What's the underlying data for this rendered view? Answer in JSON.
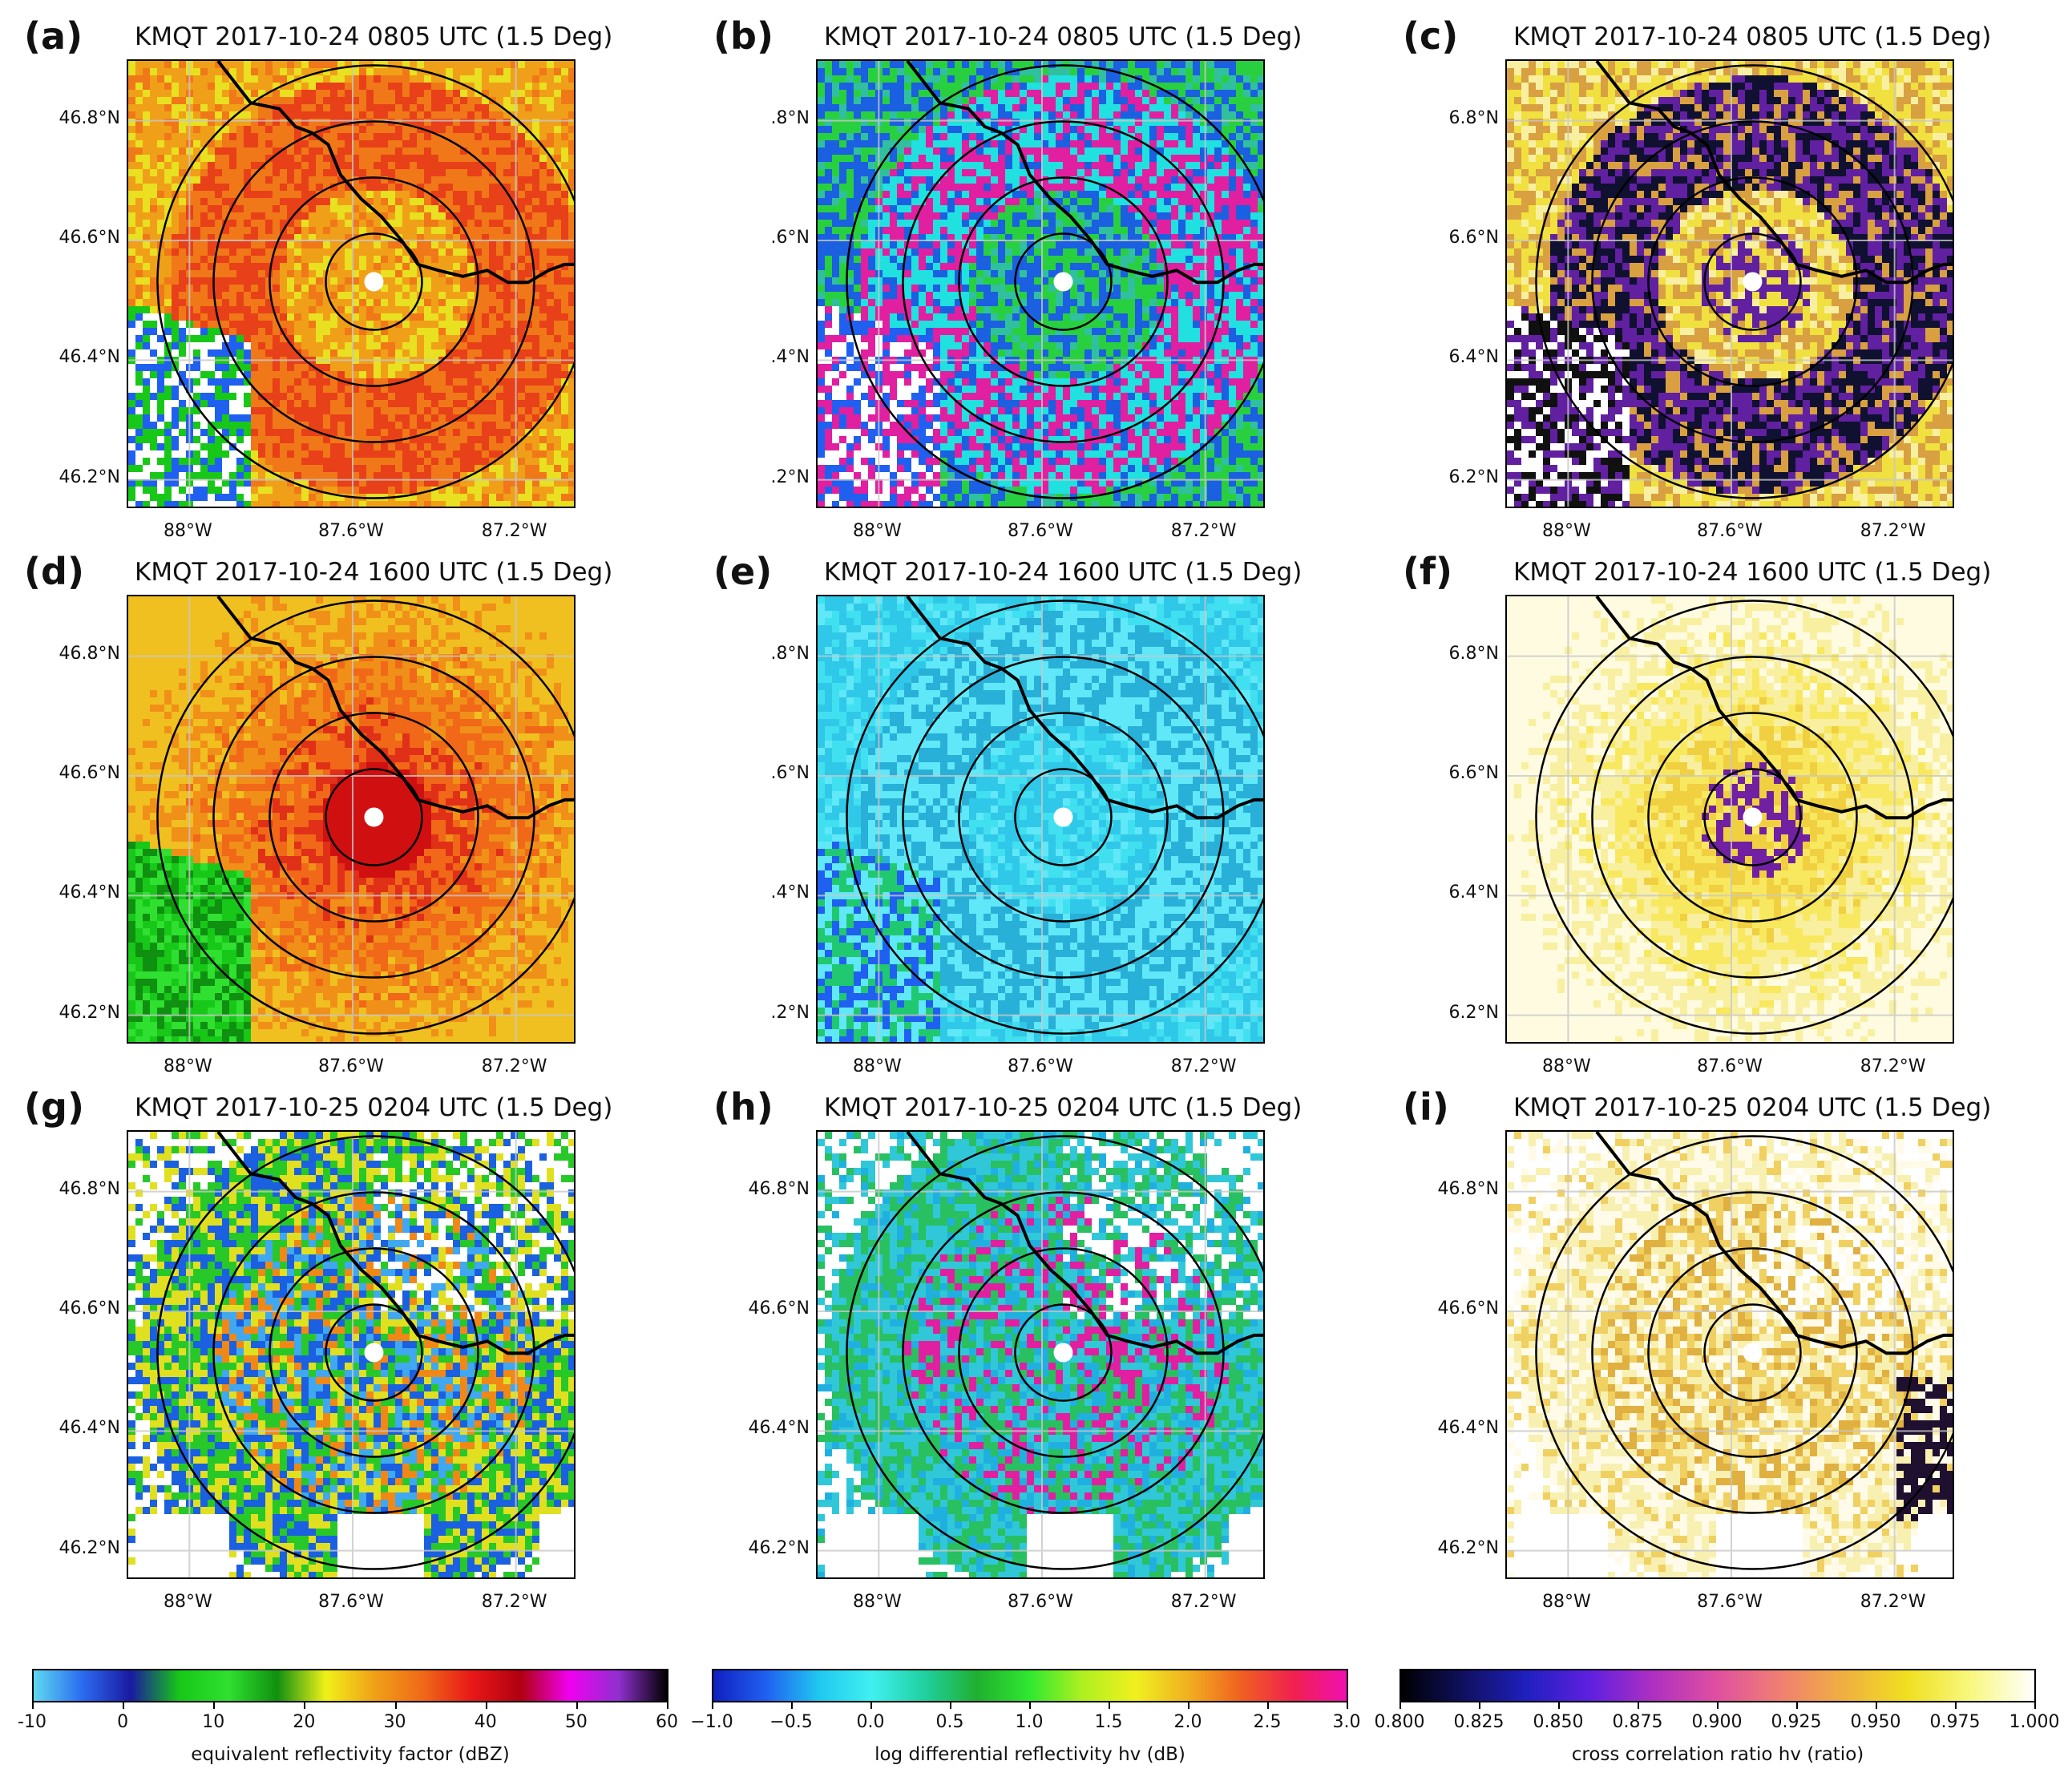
{
  "chart_data": {
    "type": "heatmap",
    "description_grid": "3x3 radar PPI panels, KMQT 1.5 deg elevation",
    "panels": [
      {
        "label": "(a)",
        "title": "KMQT 2017-10-24 0805 UTC (1.5 Deg)",
        "field": "reflectivity",
        "scene": "a",
        "yticks": [
          "46.8°N",
          "46.6°N",
          "46.4°N",
          "46.2°N"
        ],
        "xticks": [
          "88°W",
          "87.6°W",
          "87.2°W"
        ]
      },
      {
        "label": "(b)",
        "title": "KMQT 2017-10-24 0805 UTC (1.5 Deg)",
        "field": "zdr",
        "scene": "b",
        "yticks": [
          ".8°N",
          ".6°N",
          ".4°N",
          ".2°N"
        ],
        "xticks": [
          "88°W",
          "87.6°W",
          "87.2°W"
        ]
      },
      {
        "label": "(c)",
        "title": "KMQT 2017-10-24 0805 UTC (1.5 Deg)",
        "field": "rhohv",
        "scene": "c",
        "yticks": [
          "6.8°N",
          "6.6°N",
          "6.4°N",
          "6.2°N"
        ],
        "xticks": [
          "88°W",
          "87.6°W",
          "87.2°W"
        ]
      },
      {
        "label": "(d)",
        "title": "KMQT 2017-10-24 1600 UTC (1.5 Deg)",
        "field": "reflectivity",
        "scene": "d",
        "yticks": [
          "46.8°N",
          "46.6°N",
          "46.4°N",
          "46.2°N"
        ],
        "xticks": [
          "88°W",
          "87.6°W",
          "87.2°W"
        ]
      },
      {
        "label": "(e)",
        "title": "KMQT 2017-10-24 1600 UTC (1.5 Deg)",
        "field": "zdr",
        "scene": "e",
        "yticks": [
          ".8°N",
          ".6°N",
          ".4°N",
          ".2°N"
        ],
        "xticks": [
          "88°W",
          "87.6°W",
          "87.2°W"
        ]
      },
      {
        "label": "(f)",
        "title": "KMQT 2017-10-24 1600 UTC (1.5 Deg)",
        "field": "rhohv",
        "scene": "f",
        "yticks": [
          "6.8°N",
          "6.6°N",
          "6.4°N",
          "6.2°N"
        ],
        "xticks": [
          "88°W",
          "87.6°W",
          "87.2°W"
        ]
      },
      {
        "label": "(g)",
        "title": "KMQT 2017-10-25 0204 UTC (1.5 Deg)",
        "field": "reflectivity",
        "scene": "g",
        "yticks": [
          "46.8°N",
          "46.6°N",
          "46.4°N",
          "46.2°N"
        ],
        "xticks": [
          "88°W",
          "87.6°W",
          "87.2°W"
        ]
      },
      {
        "label": "(h)",
        "title": "KMQT 2017-10-25 0204 UTC (1.5 Deg)",
        "field": "zdr",
        "scene": "h",
        "yticks": [
          "46.8°N",
          "46.6°N",
          "46.4°N",
          "46.2°N"
        ],
        "xticks": [
          "88°W",
          "87.6°W",
          "87.2°W"
        ]
      },
      {
        "label": "(i)",
        "title": "KMQT 2017-10-25 0204 UTC (1.5 Deg)",
        "field": "rhohv",
        "scene": "i",
        "yticks": [
          "46.8°N",
          "46.6°N",
          "46.4°N",
          "46.2°N"
        ],
        "xticks": [
          "88°W",
          "87.6°W",
          "87.2°W"
        ]
      }
    ],
    "map_extent": {
      "lon": [
        -88.15,
        -87.05
      ],
      "lat": [
        46.15,
        46.9
      ]
    },
    "grid_lons": [
      -88.0,
      -87.6,
      -87.2
    ],
    "grid_lats": [
      46.2,
      46.4,
      46.6,
      46.8
    ],
    "colorbars": [
      {
        "label": "equivalent reflectivity factor (dBZ)",
        "ticks": [
          "-10",
          "0",
          "10",
          "20",
          "30",
          "40",
          "50",
          "60"
        ],
        "tick_values": [
          -10,
          0,
          10,
          20,
          30,
          40,
          50,
          60
        ],
        "range": [
          -10,
          60
        ],
        "stops": [
          "#5fd8f0",
          "#2a6bf0",
          "#1a1aa0",
          "#18c818",
          "#30e030",
          "#109010",
          "#f0f018",
          "#f0a018",
          "#f06818",
          "#e81818",
          "#b00010",
          "#f000f0",
          "#9030d0",
          "#000000"
        ]
      },
      {
        "label": "log differential reflectivity hv (dB)",
        "ticks": [
          "−1.0",
          "−0.5",
          "0.0",
          "0.5",
          "1.0",
          "1.5",
          "2.0",
          "2.5",
          "3.0"
        ],
        "tick_values": [
          -1.0,
          -0.5,
          0.0,
          0.5,
          1.0,
          1.5,
          2.0,
          2.5,
          3.0
        ],
        "range": [
          -1.0,
          3.0
        ],
        "stops": [
          "#1020c0",
          "#2060f0",
          "#20c8f0",
          "#40f0f0",
          "#20d0a0",
          "#20b030",
          "#30e830",
          "#b0f020",
          "#f0f020",
          "#f0b020",
          "#f06020",
          "#f02050",
          "#f010b0"
        ]
      },
      {
        "label": "cross correlation ratio hv (ratio)",
        "ticks": [
          "0.800",
          "0.825",
          "0.850",
          "0.875",
          "0.900",
          "0.925",
          "0.950",
          "0.975",
          "1.000"
        ],
        "tick_values": [
          0.8,
          0.825,
          0.85,
          0.875,
          0.9,
          0.925,
          0.95,
          0.975,
          1.0
        ],
        "range": [
          0.8,
          1.0
        ],
        "stops": [
          "#000000",
          "#101060",
          "#2020c0",
          "#6020e0",
          "#b030c0",
          "#e050a0",
          "#f08070",
          "#f0b040",
          "#f0e020",
          "#f8f880",
          "#ffffff"
        ]
      }
    ]
  }
}
